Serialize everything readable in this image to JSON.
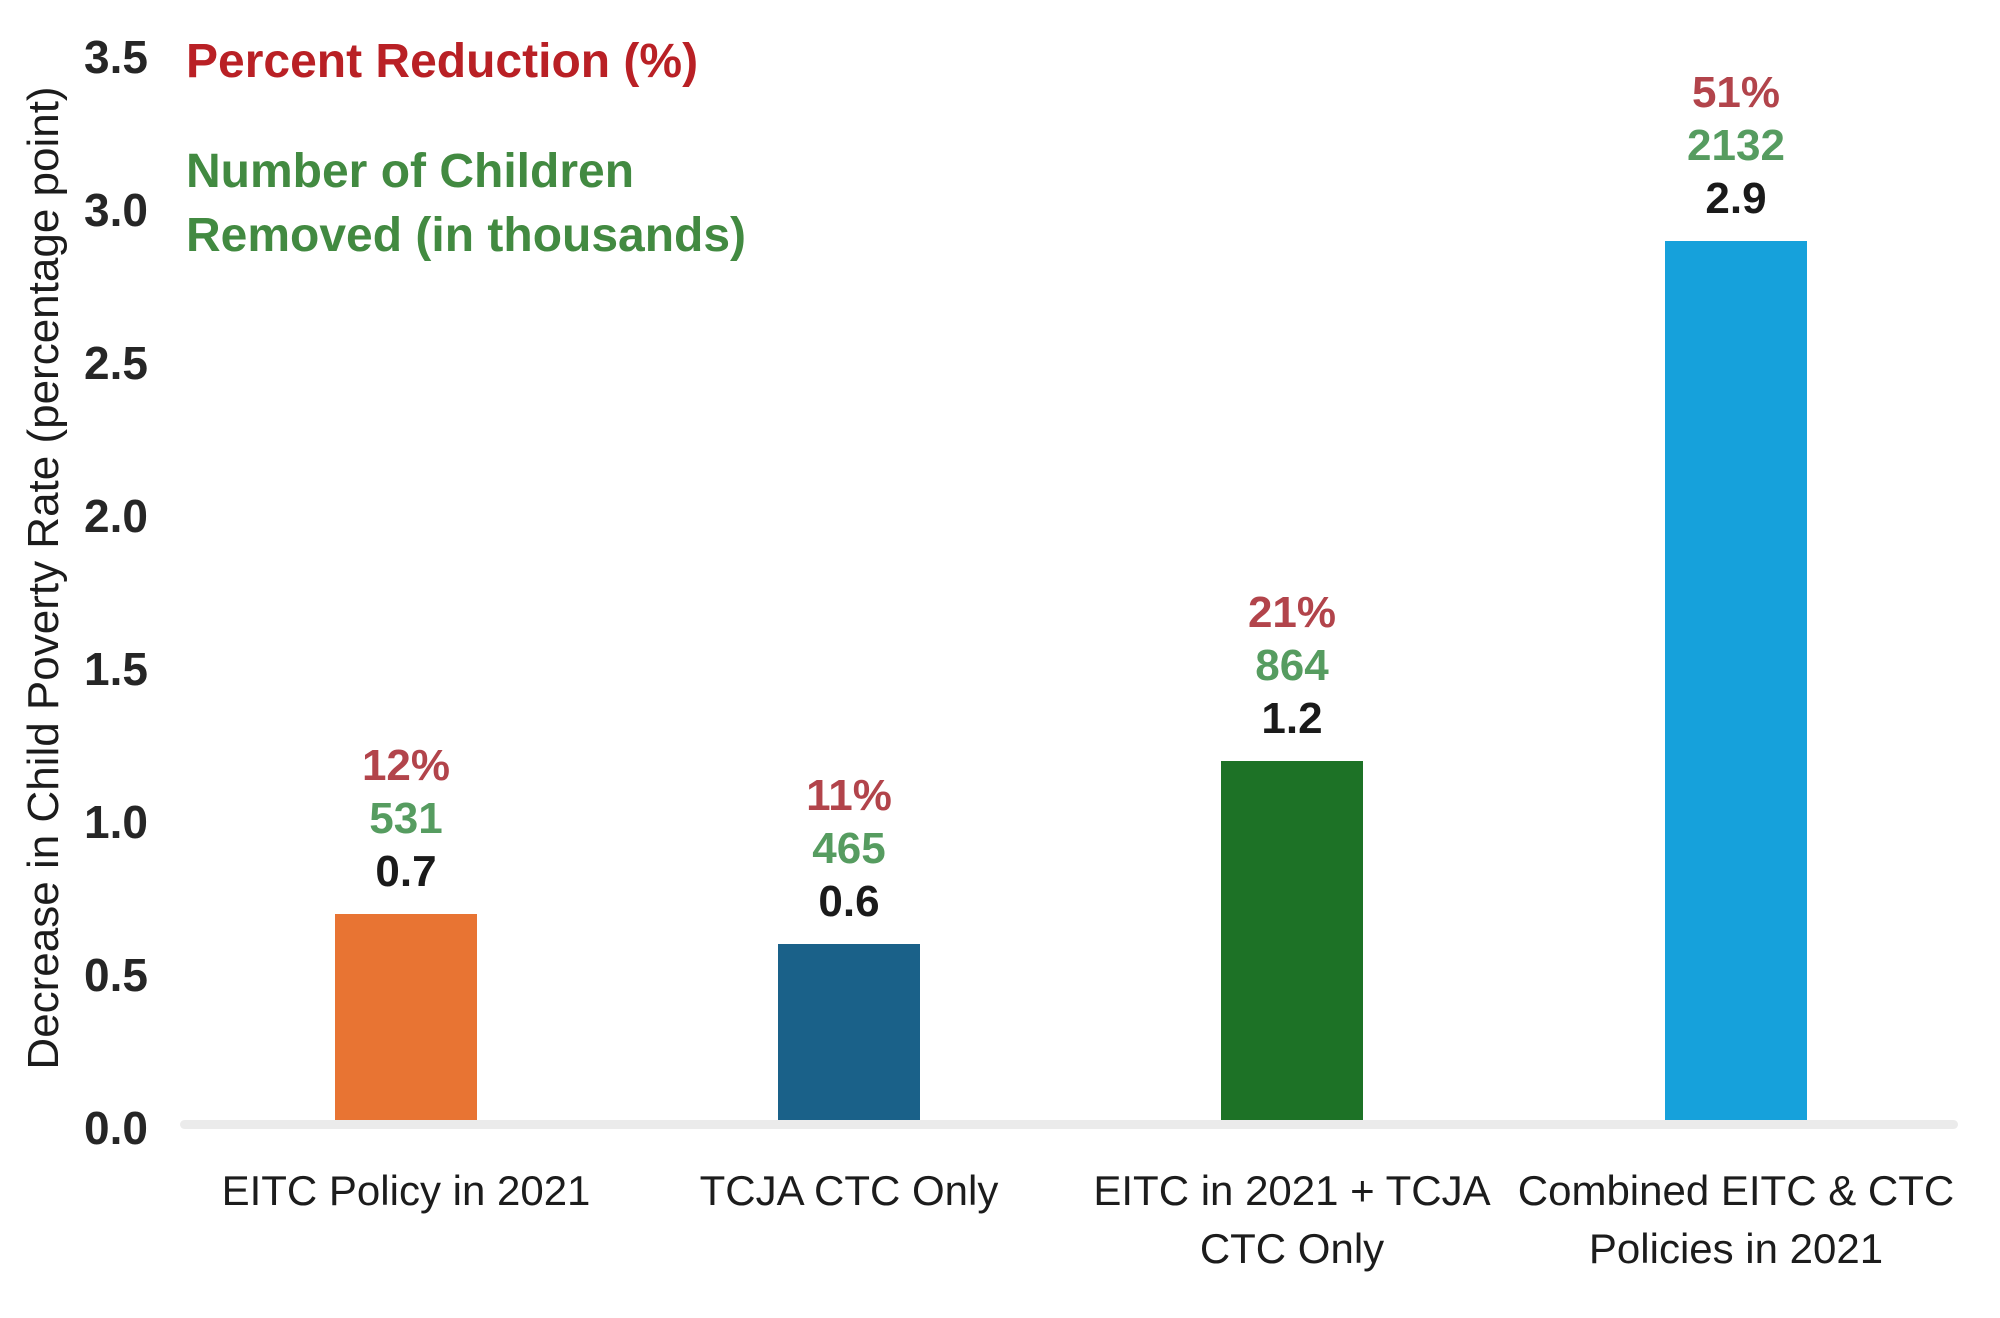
{
  "chart_data": {
    "type": "bar",
    "title": "",
    "categories": [
      "EITC Policy in 2021",
      "TCJA CTC Only",
      "EITC in 2021 + TCJA CTC Only",
      "Combined EITC & CTC Policies in 2021"
    ],
    "values": [
      0.7,
      0.6,
      1.2,
      2.9
    ],
    "bar_colors": [
      "#E87433",
      "#1A6189",
      "#1D7226",
      "#16A1DB"
    ],
    "percent_reduction": [
      "12%",
      "11%",
      "21%",
      "51%"
    ],
    "children_removed_thousands": [
      "531",
      "465",
      "864",
      "2132"
    ],
    "xlabel": "",
    "ylabel": "Decrease in Child Poverty Rate (percentage point)",
    "ylim": [
      0.0,
      3.5
    ],
    "ytick_step": 0.5,
    "yticks": [
      "0.0",
      "0.5",
      "1.0",
      "1.5",
      "2.0",
      "2.5",
      "3.0",
      "3.5"
    ],
    "grid": false,
    "legend_position": "top-left"
  },
  "legend": {
    "percent_label": "Percent Reduction (%)",
    "children_label_line1": "Number of Children",
    "children_label_line2": "Removed (in thousands)"
  },
  "colors": {
    "legend_percent": "#B92025",
    "legend_children": "#428A41",
    "percent_value_label": "#B2444B",
    "children_value_label": "#569C60",
    "bar_value_label": "#1A1A1A",
    "tick_label": "#262626",
    "category_label": "#1C1C1C",
    "axis_line": "#EBEBEB",
    "background": "#FFFFFF"
  }
}
